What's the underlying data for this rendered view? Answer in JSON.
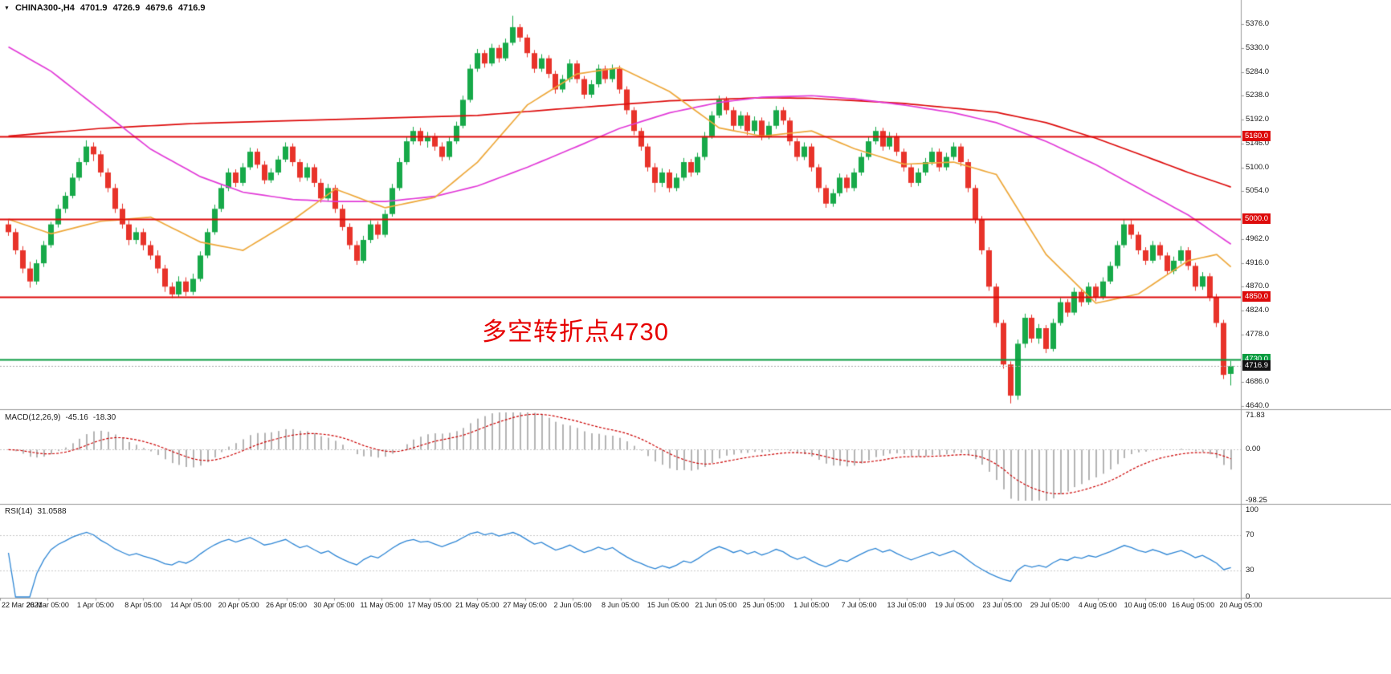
{
  "header": {
    "collapse_icon": "▼",
    "symbol_period": "CHINA300-,H4",
    "open": "4701.9",
    "high": "4726.9",
    "low": "4679.6",
    "close": "4716.9"
  },
  "annotation": {
    "text": "多空转折点4730",
    "color": "#e60000"
  },
  "panels": {
    "macd": {
      "label": "MACD(12,26,9)",
      "main_value": "-45.16",
      "signal_value": "-18.30",
      "axis_labels": [
        "71.83",
        "0.00",
        "-98.25"
      ],
      "max": 71.83,
      "min": -98.25,
      "histogram_color": "#b4b4b4",
      "signal_color": "#cc0000"
    },
    "rsi": {
      "label": "RSI(14)",
      "value": "31.0588",
      "axis_labels": [
        "100",
        "70",
        "30",
        "0"
      ],
      "levels": [
        70,
        30
      ],
      "max": 100,
      "min": 0,
      "line_color": "#2e86d5"
    }
  },
  "price_axis": {
    "max": 5376.0,
    "min": 4640.0,
    "step": 46.0,
    "hidden_ticks": [
      5008.0,
      4732.0
    ]
  },
  "levels": [
    {
      "price": 5160.0,
      "label": "5160.0",
      "color": "#dd0b0b"
    },
    {
      "price": 5000.0,
      "label": "5000.0",
      "color": "#dd0b0b"
    },
    {
      "price": 4850.0,
      "label": "4850.0",
      "color": "#dd0b0b"
    },
    {
      "price": 4730.0,
      "label": "4730.0",
      "color": "#089c40"
    }
  ],
  "current_price": {
    "value": 4716.9,
    "label": "4716.9",
    "badge_color": "#111111"
  },
  "time_axis": {
    "labels": [
      "22 Mar 2021",
      "26 Mar 05:00",
      "1 Apr 05:00",
      "8 Apr 05:00",
      "14 Apr 05:00",
      "20 Apr 05:00",
      "26 Apr 05:00",
      "30 Apr 05:00",
      "11 May 05:00",
      "17 May 05:00",
      "21 May 05:00",
      "27 May 05:00",
      "2 Jun 05:00",
      "8 Jun 05:00",
      "15 Jun 05:00",
      "21 Jun 05:00",
      "25 Jun 05:00",
      "1 Jul 05:00",
      "7 Jul 05:00",
      "13 Jul 05:00",
      "19 Jul 05:00",
      "23 Jul 05:00",
      "29 Jul 05:00",
      "4 Aug 05:00",
      "10 Aug 05:00",
      "16 Aug 05:00",
      "20 Aug 05:00"
    ]
  },
  "chart_data": {
    "type": "candlestick",
    "title": "CHINA300- H4",
    "ylim": [
      4640,
      5376
    ],
    "up_color": "#17a949",
    "down_color": "#e8332a",
    "candles": [
      [
        4990,
        4998,
        4968,
        4975
      ],
      [
        4975,
        4982,
        4932,
        4940
      ],
      [
        4940,
        4948,
        4896,
        4905
      ],
      [
        4905,
        4918,
        4868,
        4880
      ],
      [
        4880,
        4922,
        4874,
        4915
      ],
      [
        4915,
        4958,
        4908,
        4950
      ],
      [
        4950,
        4995,
        4945,
        4990
      ],
      [
        4990,
        5028,
        4984,
        5020
      ],
      [
        5020,
        5052,
        5012,
        5045
      ],
      [
        5045,
        5088,
        5040,
        5080
      ],
      [
        5080,
        5118,
        5074,
        5110
      ],
      [
        5110,
        5152,
        5104,
        5140
      ],
      [
        5140,
        5148,
        5112,
        5125
      ],
      [
        5125,
        5132,
        5082,
        5090
      ],
      [
        5090,
        5098,
        5052,
        5060
      ],
      [
        5060,
        5068,
        5012,
        5020
      ],
      [
        5020,
        5030,
        4982,
        4990
      ],
      [
        4990,
        4998,
        4950,
        4960
      ],
      [
        4960,
        4984,
        4952,
        4975
      ],
      [
        4975,
        4982,
        4940,
        4950
      ],
      [
        4950,
        4958,
        4922,
        4930
      ],
      [
        4930,
        4940,
        4896,
        4905
      ],
      [
        4905,
        4912,
        4860,
        4870
      ],
      [
        4870,
        4878,
        4848,
        4855
      ],
      [
        4855,
        4890,
        4850,
        4880
      ],
      [
        4880,
        4888,
        4852,
        4860
      ],
      [
        4860,
        4895,
        4854,
        4885
      ],
      [
        4885,
        4938,
        4880,
        4930
      ],
      [
        4930,
        4982,
        4925,
        4975
      ],
      [
        4975,
        5028,
        4970,
        5020
      ],
      [
        5020,
        5068,
        5014,
        5060
      ],
      [
        5060,
        5098,
        5054,
        5090
      ],
      [
        5090,
        5096,
        5062,
        5070
      ],
      [
        5070,
        5108,
        5064,
        5100
      ],
      [
        5100,
        5138,
        5095,
        5130
      ],
      [
        5130,
        5136,
        5098,
        5105
      ],
      [
        5105,
        5112,
        5068,
        5075
      ],
      [
        5075,
        5098,
        5070,
        5090
      ],
      [
        5090,
        5122,
        5085,
        5115
      ],
      [
        5115,
        5148,
        5110,
        5140
      ],
      [
        5140,
        5146,
        5102,
        5110
      ],
      [
        5110,
        5116,
        5072,
        5080
      ],
      [
        5080,
        5108,
        5074,
        5100
      ],
      [
        5100,
        5106,
        5062,
        5070
      ],
      [
        5070,
        5078,
        5032,
        5040
      ],
      [
        5040,
        5068,
        5034,
        5060
      ],
      [
        5060,
        5066,
        5012,
        5020
      ],
      [
        5020,
        5028,
        4978,
        4985
      ],
      [
        4985,
        4992,
        4942,
        4950
      ],
      [
        4950,
        4958,
        4912,
        4920
      ],
      [
        4920,
        4968,
        4915,
        4960
      ],
      [
        4960,
        4998,
        4954,
        4990
      ],
      [
        4990,
        4996,
        4962,
        4970
      ],
      [
        4970,
        5018,
        4965,
        5010
      ],
      [
        5010,
        5068,
        5005,
        5060
      ],
      [
        5060,
        5118,
        5055,
        5110
      ],
      [
        5110,
        5158,
        5105,
        5150
      ],
      [
        5150,
        5178,
        5144,
        5170
      ],
      [
        5170,
        5176,
        5142,
        5150
      ],
      [
        5150,
        5168,
        5138,
        5160
      ],
      [
        5160,
        5166,
        5132,
        5140
      ],
      [
        5140,
        5148,
        5112,
        5120
      ],
      [
        5120,
        5158,
        5114,
        5150
      ],
      [
        5150,
        5188,
        5145,
        5180
      ],
      [
        5180,
        5238,
        5175,
        5230
      ],
      [
        5230,
        5298,
        5225,
        5290
      ],
      [
        5290,
        5328,
        5284,
        5320
      ],
      [
        5320,
        5326,
        5292,
        5300
      ],
      [
        5300,
        5338,
        5295,
        5330
      ],
      [
        5330,
        5336,
        5302,
        5310
      ],
      [
        5310,
        5348,
        5305,
        5340
      ],
      [
        5340,
        5392,
        5335,
        5370
      ],
      [
        5370,
        5376,
        5342,
        5350
      ],
      [
        5350,
        5356,
        5312,
        5320
      ],
      [
        5320,
        5326,
        5282,
        5290
      ],
      [
        5290,
        5318,
        5284,
        5310
      ],
      [
        5310,
        5316,
        5272,
        5280
      ],
      [
        5280,
        5286,
        5242,
        5250
      ],
      [
        5250,
        5278,
        5244,
        5270
      ],
      [
        5270,
        5308,
        5264,
        5300
      ],
      [
        5300,
        5306,
        5262,
        5270
      ],
      [
        5270,
        5276,
        5232,
        5240
      ],
      [
        5240,
        5268,
        5234,
        5260
      ],
      [
        5260,
        5298,
        5254,
        5290
      ],
      [
        5290,
        5296,
        5262,
        5270
      ],
      [
        5270,
        5298,
        5264,
        5290
      ],
      [
        5290,
        5296,
        5242,
        5250
      ],
      [
        5250,
        5256,
        5202,
        5210
      ],
      [
        5210,
        5216,
        5162,
        5170
      ],
      [
        5170,
        5176,
        5132,
        5140
      ],
      [
        5140,
        5146,
        5092,
        5100
      ],
      [
        5100,
        5108,
        5052,
        5070
      ],
      [
        5070,
        5098,
        5062,
        5090
      ],
      [
        5090,
        5096,
        5052,
        5060
      ],
      [
        5060,
        5088,
        5054,
        5080
      ],
      [
        5080,
        5118,
        5074,
        5110
      ],
      [
        5110,
        5116,
        5082,
        5090
      ],
      [
        5090,
        5128,
        5085,
        5120
      ],
      [
        5120,
        5168,
        5114,
        5160
      ],
      [
        5160,
        5208,
        5155,
        5200
      ],
      [
        5200,
        5238,
        5195,
        5230
      ],
      [
        5230,
        5236,
        5202,
        5210
      ],
      [
        5210,
        5216,
        5172,
        5180
      ],
      [
        5180,
        5208,
        5174,
        5200
      ],
      [
        5200,
        5206,
        5162,
        5170
      ],
      [
        5170,
        5198,
        5164,
        5190
      ],
      [
        5190,
        5196,
        5152,
        5160
      ],
      [
        5160,
        5188,
        5154,
        5180
      ],
      [
        5180,
        5218,
        5174,
        5210
      ],
      [
        5210,
        5216,
        5182,
        5190
      ],
      [
        5190,
        5196,
        5142,
        5150
      ],
      [
        5150,
        5156,
        5112,
        5120
      ],
      [
        5120,
        5148,
        5114,
        5140
      ],
      [
        5140,
        5146,
        5092,
        5100
      ],
      [
        5100,
        5106,
        5052,
        5060
      ],
      [
        5060,
        5066,
        5022,
        5030
      ],
      [
        5030,
        5058,
        5024,
        5050
      ],
      [
        5050,
        5088,
        5044,
        5080
      ],
      [
        5080,
        5086,
        5052,
        5060
      ],
      [
        5060,
        5098,
        5054,
        5090
      ],
      [
        5090,
        5128,
        5084,
        5120
      ],
      [
        5120,
        5158,
        5114,
        5150
      ],
      [
        5150,
        5178,
        5144,
        5170
      ],
      [
        5170,
        5176,
        5132,
        5140
      ],
      [
        5140,
        5168,
        5134,
        5160
      ],
      [
        5160,
        5166,
        5122,
        5130
      ],
      [
        5130,
        5136,
        5092,
        5100
      ],
      [
        5100,
        5106,
        5062,
        5070
      ],
      [
        5070,
        5098,
        5064,
        5090
      ],
      [
        5090,
        5118,
        5084,
        5110
      ],
      [
        5110,
        5138,
        5104,
        5130
      ],
      [
        5130,
        5136,
        5092,
        5100
      ],
      [
        5100,
        5128,
        5094,
        5120
      ],
      [
        5120,
        5148,
        5114,
        5140
      ],
      [
        5140,
        5146,
        5102,
        5110
      ],
      [
        5110,
        5116,
        5052,
        5060
      ],
      [
        5060,
        5066,
        4992,
        5000
      ],
      [
        5000,
        5006,
        4932,
        4940
      ],
      [
        4940,
        4946,
        4862,
        4870
      ],
      [
        4870,
        4876,
        4792,
        4800
      ],
      [
        4800,
        4806,
        4712,
        4720
      ],
      [
        4720,
        4726,
        4645,
        4660
      ],
      [
        4660,
        4768,
        4652,
        4760
      ],
      [
        4760,
        4818,
        4752,
        4810
      ],
      [
        4810,
        4816,
        4762,
        4770
      ],
      [
        4770,
        4798,
        4760,
        4790
      ],
      [
        4790,
        4796,
        4742,
        4750
      ],
      [
        4750,
        4808,
        4745,
        4800
      ],
      [
        4800,
        4848,
        4795,
        4840
      ],
      [
        4840,
        4846,
        4812,
        4820
      ],
      [
        4820,
        4868,
        4815,
        4860
      ],
      [
        4860,
        4866,
        4832,
        4840
      ],
      [
        4840,
        4878,
        4835,
        4870
      ],
      [
        4870,
        4876,
        4842,
        4850
      ],
      [
        4850,
        4888,
        4845,
        4880
      ],
      [
        4880,
        4918,
        4875,
        4910
      ],
      [
        4910,
        4958,
        4905,
        4950
      ],
      [
        4950,
        5000,
        4945,
        4990
      ],
      [
        4990,
        4998,
        4962,
        4970
      ],
      [
        4970,
        4976,
        4932,
        4940
      ],
      [
        4940,
        4946,
        4912,
        4920
      ],
      [
        4920,
        4958,
        4915,
        4950
      ],
      [
        4950,
        4956,
        4922,
        4930
      ],
      [
        4930,
        4936,
        4892,
        4900
      ],
      [
        4900,
        4928,
        4894,
        4920
      ],
      [
        4920,
        4948,
        4914,
        4940
      ],
      [
        4940,
        4946,
        4902,
        4910
      ],
      [
        4910,
        4916,
        4862,
        4870
      ],
      [
        4870,
        4898,
        4864,
        4890
      ],
      [
        4890,
        4896,
        4842,
        4850
      ],
      [
        4850,
        4856,
        4792,
        4800
      ],
      [
        4800,
        4806,
        4692,
        4700
      ],
      [
        4701.9,
        4726.9,
        4679.6,
        4716.9
      ]
    ],
    "moving_averages": [
      {
        "name": "ma-slow",
        "color": "#dd0b0b",
        "points": [
          [
            0,
            5160
          ],
          [
            13,
            5175
          ],
          [
            27,
            5185
          ],
          [
            40,
            5190
          ],
          [
            53,
            5195
          ],
          [
            66,
            5200
          ],
          [
            80,
            5215
          ],
          [
            93,
            5228
          ],
          [
            106,
            5234
          ],
          [
            113,
            5233
          ],
          [
            126,
            5223
          ],
          [
            139,
            5206
          ],
          [
            146,
            5186
          ],
          [
            153,
            5156
          ],
          [
            159,
            5126
          ],
          [
            166,
            5090
          ],
          [
            172,
            5062
          ]
        ]
      },
      {
        "name": "ma-mid",
        "color": "#e23bd8",
        "points": [
          [
            0,
            5332
          ],
          [
            6,
            5285
          ],
          [
            13,
            5210
          ],
          [
            20,
            5135
          ],
          [
            27,
            5082
          ],
          [
            33,
            5052
          ],
          [
            40,
            5038
          ],
          [
            46,
            5034
          ],
          [
            53,
            5034
          ],
          [
            60,
            5044
          ],
          [
            66,
            5064
          ],
          [
            73,
            5100
          ],
          [
            80,
            5140
          ],
          [
            86,
            5175
          ],
          [
            93,
            5205
          ],
          [
            100,
            5225
          ],
          [
            106,
            5235
          ],
          [
            113,
            5238
          ],
          [
            119,
            5232
          ],
          [
            126,
            5220
          ],
          [
            133,
            5205
          ],
          [
            139,
            5186
          ],
          [
            146,
            5150
          ],
          [
            153,
            5105
          ],
          [
            159,
            5060
          ],
          [
            166,
            5008
          ],
          [
            172,
            4952
          ]
        ]
      },
      {
        "name": "ma-fast",
        "color": "#eea83a",
        "points": [
          [
            0,
            5000
          ],
          [
            6,
            4972
          ],
          [
            13,
            4996
          ],
          [
            20,
            5004
          ],
          [
            27,
            4956
          ],
          [
            33,
            4940
          ],
          [
            40,
            4998
          ],
          [
            46,
            5058
          ],
          [
            53,
            5022
          ],
          [
            60,
            5042
          ],
          [
            66,
            5110
          ],
          [
            73,
            5220
          ],
          [
            80,
            5280
          ],
          [
            86,
            5292
          ],
          [
            93,
            5246
          ],
          [
            100,
            5176
          ],
          [
            106,
            5160
          ],
          [
            113,
            5170
          ],
          [
            119,
            5136
          ],
          [
            126,
            5106
          ],
          [
            133,
            5110
          ],
          [
            139,
            5086
          ],
          [
            146,
            4932
          ],
          [
            153,
            4838
          ],
          [
            159,
            4856
          ],
          [
            166,
            4920
          ],
          [
            170,
            4932
          ],
          [
            172,
            4908
          ]
        ]
      }
    ]
  }
}
